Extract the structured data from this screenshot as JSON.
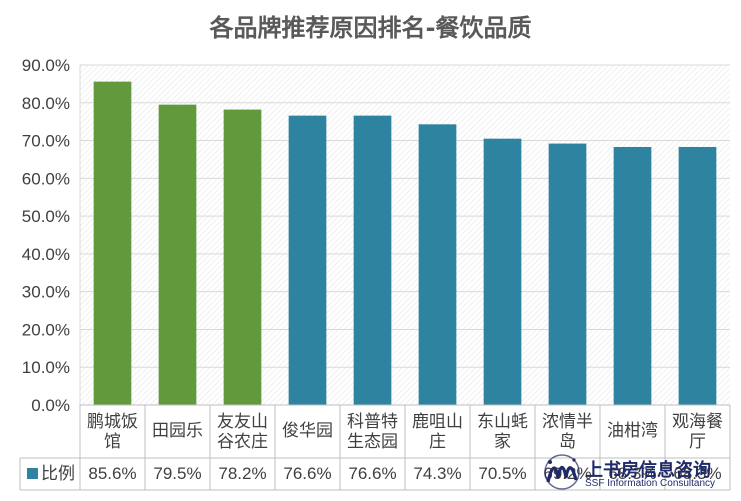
{
  "chart_data": {
    "type": "bar",
    "title": "各品牌推荐原因排名-餐饮品质",
    "categories": [
      [
        "鹏城饭",
        "馆"
      ],
      [
        "田园乐"
      ],
      [
        "友友山",
        "谷农庄"
      ],
      [
        "俊华园"
      ],
      [
        "科普特",
        "生态园"
      ],
      [
        "鹿咀山",
        "庄"
      ],
      [
        "东山蚝",
        "家"
      ],
      [
        "浓情半",
        "岛"
      ],
      [
        "油柑湾"
      ],
      [
        "观海餐",
        "厅"
      ]
    ],
    "series": [
      {
        "name": "比例",
        "values": [
          85.6,
          79.5,
          78.2,
          76.6,
          76.6,
          74.3,
          70.5,
          69.2,
          68.3,
          68.3
        ],
        "labels": [
          "85.6%",
          "79.5%",
          "78.2%",
          "76.6%",
          "76.6%",
          "74.3%",
          "70.5%",
          "69.2%",
          "68.3%",
          "68.3%"
        ]
      }
    ],
    "bar_colors": [
      "#63993d",
      "#63993d",
      "#63993d",
      "#2e84a0",
      "#2e84a0",
      "#2e84a0",
      "#2e84a0",
      "#2e84a0",
      "#2e84a0",
      "#2e84a0"
    ],
    "legend_color": "#2e84a0",
    "ylim": [
      0,
      90
    ],
    "yticks": [
      "0.0%",
      "10.0%",
      "20.0%",
      "30.0%",
      "40.0%",
      "50.0%",
      "60.0%",
      "70.0%",
      "80.0%",
      "90.0%"
    ],
    "grid": true,
    "data_table": true
  },
  "watermark": {
    "name_cn": "上书房信息咨询",
    "name_en": "SSF Information Consultancy"
  }
}
